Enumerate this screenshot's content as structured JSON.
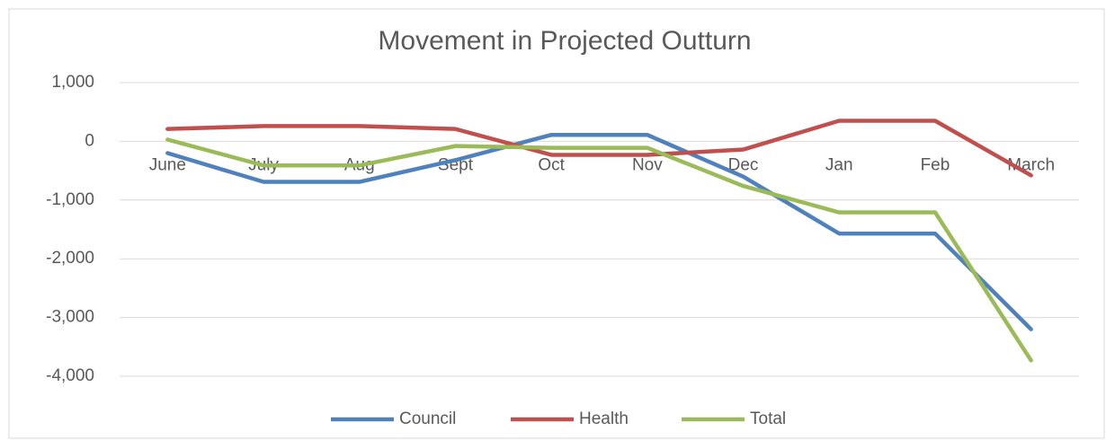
{
  "chart_data": {
    "type": "line",
    "title": "Movement in Projected Outturn",
    "categories": [
      "June",
      "July",
      "Aug",
      "Sept",
      "Oct",
      "Nov",
      "Dec",
      "Jan",
      "Feb",
      "March"
    ],
    "series": [
      {
        "name": "Council",
        "color": "#4f81bd",
        "values": [
          -200,
          -690,
          -690,
          -320,
          110,
          110,
          -600,
          -1570,
          -1570,
          -3200
        ]
      },
      {
        "name": "Health",
        "color": "#c0504d",
        "values": [
          210,
          260,
          260,
          210,
          -230,
          -230,
          -140,
          350,
          350,
          -580
        ]
      },
      {
        "name": "Total",
        "color": "#9bbb59",
        "values": [
          30,
          -410,
          -410,
          -80,
          -110,
          -110,
          -760,
          -1210,
          -1210,
          -3730
        ]
      }
    ],
    "ylim": [
      -4000,
      1000
    ],
    "yticks": [
      {
        "value": 1000,
        "label": "1,000"
      },
      0,
      {
        "value": -1000,
        "label": "-1,000"
      },
      {
        "value": -2000,
        "label": "-2,000"
      },
      {
        "value": -3000,
        "label": "-3,000"
      },
      {
        "value": -4000,
        "label": "-4,000"
      }
    ],
    "grid": true,
    "legend": "bottom"
  }
}
